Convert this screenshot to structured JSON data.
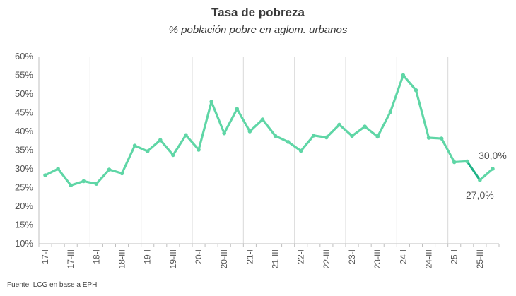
{
  "chart_data": {
    "type": "line",
    "title": "Tasa de pobreza",
    "subtitle": "% población pobre en aglom. urbanos",
    "source": "Fuente: LCG  en base a EPH",
    "ylim": [
      10,
      60
    ],
    "yticks": [
      10,
      15,
      20,
      25,
      30,
      35,
      40,
      45,
      50,
      55,
      60
    ],
    "ytick_labels": [
      "10%",
      "15%",
      "20%",
      "25%",
      "30%",
      "35%",
      "40%",
      "45%",
      "50%",
      "55%",
      "60%"
    ],
    "x": [
      "17-I",
      "17-II",
      "17-III",
      "17-IV",
      "18-I",
      "18-II",
      "18-III",
      "18-IV",
      "19-I",
      "19-II",
      "19-III",
      "19-IV",
      "20-I",
      "20-II",
      "20-III",
      "20-IV",
      "21-I",
      "21-II",
      "21-III",
      "21-IV",
      "22-I",
      "22-II",
      "22-III",
      "22-IV",
      "23-I",
      "23-II",
      "23-III",
      "23-IV",
      "24-I",
      "24-II",
      "24-III",
      "24-IV",
      "25-I",
      "25-II",
      "25-III",
      "25-IV"
    ],
    "xtick_labels": [
      "17-I",
      "17-III",
      "18-I",
      "18-III",
      "19-I",
      "19-III",
      "20-I",
      "20-III",
      "21-I",
      "21-III",
      "22-I",
      "22-III",
      "23-I",
      "23-III",
      "24-I",
      "24-III",
      "25-I",
      "25-III"
    ],
    "grid": "vertical",
    "series": [
      {
        "color": "#5fd6a6",
        "highlight_color": "#1fb387",
        "values": [
          28.3,
          30.0,
          25.6,
          26.7,
          26.0,
          29.8,
          28.8,
          36.2,
          34.7,
          37.7,
          33.7,
          39.0,
          35.1,
          47.9,
          39.5,
          46.0,
          40.0,
          43.2,
          38.8,
          37.2,
          34.8,
          38.9,
          38.4,
          41.8,
          38.8,
          41.3,
          38.6,
          45.2,
          55.0,
          51.0,
          38.3,
          38.1,
          31.8,
          32.0,
          27.0,
          30.0
        ]
      }
    ],
    "annotations": [
      {
        "index": 35,
        "text": "30,0%",
        "position": "above"
      },
      {
        "index": 34,
        "text": "27,0%",
        "position": "below"
      }
    ]
  }
}
